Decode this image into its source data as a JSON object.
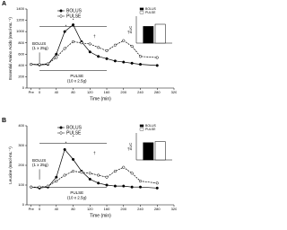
{
  "chart_data": [
    {
      "type": "line",
      "panel": "A",
      "ylabel": "Essential Amino Acids (nmol·mL⁻¹)",
      "xlabel": "Time (min)",
      "x": [
        -20,
        0,
        20,
        40,
        60,
        80,
        100,
        120,
        140,
        160,
        180,
        200,
        220,
        240,
        280
      ],
      "series": [
        {
          "name": "BOLUS",
          "color": "#000000",
          "values": [
            420,
            410,
            420,
            600,
            1000,
            1120,
            820,
            640,
            560,
            520,
            480,
            460,
            440,
            420,
            400
          ]
        },
        {
          "name": "PULSE",
          "color": "#000000",
          "values": [
            420,
            420,
            430,
            540,
            700,
            820,
            800,
            780,
            720,
            660,
            760,
            840,
            740,
            560,
            540
          ]
        }
      ],
      "xlim": [
        -30,
        320
      ],
      "xticks": [
        {
          "value": -20,
          "label": "Pre"
        },
        0,
        40,
        80,
        120,
        160,
        200,
        240,
        280,
        320
      ],
      "ylim": [
        0,
        1400
      ],
      "yticks": [
        0,
        200,
        400,
        600,
        800,
        1000,
        1200,
        1400
      ],
      "annotations": [
        "BOLUS",
        "(1 x 25g)",
        "PULSE",
        "(10 x 2.5g)",
        "*",
        "*",
        "†",
        "†"
      ]
    },
    {
      "type": "bar",
      "ylabel": "AUC",
      "ylim": [
        0,
        100
      ],
      "series": [
        {
          "name": "BOLUS",
          "color": "#000000",
          "values": [
            62
          ]
        },
        {
          "name": "PULSE",
          "color": "#ffffff",
          "values": [
            70
          ]
        }
      ]
    },
    {
      "type": "line",
      "panel": "B",
      "ylabel": "Leucine (nmol·mL⁻¹)",
      "xlabel": "Time (min)",
      "x": [
        -20,
        0,
        20,
        40,
        60,
        80,
        100,
        120,
        140,
        160,
        180,
        200,
        220,
        240,
        280
      ],
      "series": [
        {
          "name": "BOLUS",
          "color": "#000000",
          "values": [
            90,
            85,
            90,
            140,
            280,
            230,
            170,
            130,
            110,
            100,
            95,
            95,
            90,
            90,
            85
          ]
        },
        {
          "name": "PULSE",
          "color": "#000000",
          "values": [
            90,
            90,
            95,
            120,
            150,
            170,
            165,
            160,
            150,
            140,
            170,
            190,
            160,
            120,
            110
          ]
        }
      ],
      "xlim": [
        -30,
        320
      ],
      "xticks": [
        {
          "value": -20,
          "label": "Pre"
        },
        0,
        40,
        80,
        120,
        160,
        200,
        240,
        280,
        320
      ],
      "ylim": [
        0,
        400
      ],
      "yticks": [
        0,
        100,
        200,
        300,
        400
      ],
      "annotations": [
        "BOLUS",
        "(1 x 25g)",
        "PULSE",
        "(10 x 2.5g)",
        "*",
        "*",
        "†",
        "†"
      ]
    },
    {
      "type": "bar",
      "ylabel": "AUC",
      "ylim": [
        0,
        100
      ],
      "series": [
        {
          "name": "BOLUS",
          "color": "#000000",
          "values": [
            64
          ]
        },
        {
          "name": "PULSE",
          "color": "#ffffff",
          "values": [
            68
          ]
        }
      ]
    }
  ]
}
